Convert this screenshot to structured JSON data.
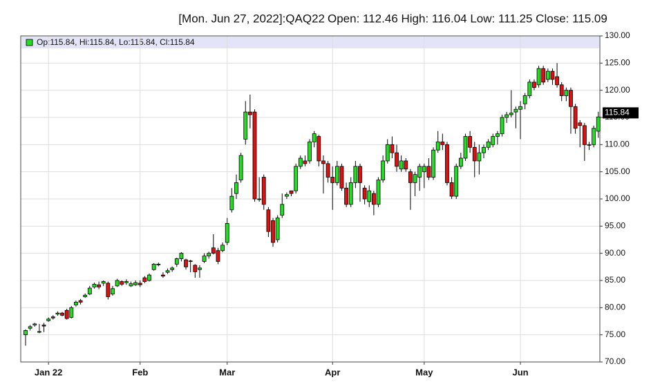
{
  "chart_data": {
    "type": "candlestick",
    "title": "[Mon. Jun 27, 2022]:QAQ22",
    "subtitle": "Open: 112.46 High: 116.04 Low: 111.25 Close: 115.09",
    "legend_text": "Op:115.84, Hi:115.84, Lo:115.84, Cl:115.84",
    "last_price": {
      "value": 115.84,
      "label": "115.84"
    },
    "up_color": "#22dd22",
    "down_color": "#dd1111",
    "grid": true,
    "ylim": [
      70,
      130
    ],
    "yticks": [
      {
        "value": 70,
        "label": "70.00"
      },
      {
        "value": 75,
        "label": "75.00"
      },
      {
        "value": 80,
        "label": "80.00"
      },
      {
        "value": 85,
        "label": "85.00"
      },
      {
        "value": 90,
        "label": "90.00"
      },
      {
        "value": 95,
        "label": "95.00"
      },
      {
        "value": 100,
        "label": "100.00"
      },
      {
        "value": 105,
        "label": "105.00"
      },
      {
        "value": 110,
        "label": "110.00"
      },
      {
        "value": 115,
        "label": "115.00"
      },
      {
        "value": 120,
        "label": "120.00"
      },
      {
        "value": 125,
        "label": "125.00"
      },
      {
        "value": 130,
        "label": "130.00"
      }
    ],
    "categories": [
      null,
      null,
      null,
      null,
      null,
      "Jan 22",
      null,
      null,
      null,
      null,
      null,
      null,
      null,
      null,
      null,
      null,
      null,
      null,
      null,
      null,
      null,
      null,
      null,
      null,
      null,
      "Feb",
      null,
      null,
      null,
      null,
      null,
      null,
      null,
      null,
      null,
      null,
      null,
      null,
      null,
      null,
      null,
      null,
      null,
      null,
      "Mar",
      null,
      null,
      null,
      null,
      null,
      null,
      null,
      null,
      null,
      null,
      null,
      null,
      null,
      null,
      null,
      null,
      null,
      null,
      null,
      null,
      null,
      null,
      "Apr",
      null,
      null,
      null,
      null,
      null,
      null,
      null,
      null,
      null,
      null,
      null,
      null,
      null,
      null,
      null,
      null,
      null,
      null,
      null,
      "May",
      null,
      null,
      null,
      null,
      null,
      null,
      null,
      null,
      null,
      null,
      null,
      null,
      null,
      null,
      null,
      null,
      null,
      null,
      null,
      null,
      "Jun",
      null,
      null,
      null,
      null,
      null,
      null,
      null,
      null,
      null,
      null,
      null,
      null,
      null,
      null,
      null,
      null,
      null
    ],
    "open": [
      75.0,
      76.2,
      76.8,
      75.5,
      76.8,
      77.6,
      78.3,
      78.8,
      79.0,
      79.5,
      78.2,
      80.5,
      81.3,
      82.0,
      82.5,
      83.8,
      84.2,
      84.5,
      84.5,
      82.5,
      84.0,
      84.8,
      84.6,
      84.0,
      84.2,
      84.5,
      85.5,
      85.0,
      87.0,
      88.0,
      86.0,
      86.5,
      87.0,
      88.0,
      89.0,
      88.8,
      88.5,
      87.8,
      87.0,
      88.5,
      89.5,
      91.0,
      90.5,
      90.5,
      92.0,
      98.0,
      101.0,
      103.5,
      111.0,
      116.0,
      116.0,
      100.0,
      104.0,
      98.0,
      96.0,
      92.5,
      97.0,
      100.5,
      101.5,
      101.5,
      106.0,
      107.0,
      107.0,
      110.5,
      111.5,
      107.0,
      106.5,
      104.0,
      103.0,
      106.0,
      102.0,
      99.0,
      103.0,
      106.0,
      102.0,
      99.5,
      101.0,
      99.0,
      103.5,
      107.0,
      110.0,
      108.5,
      105.5,
      107.0,
      105.0,
      103.0,
      104.0,
      105.0,
      106.0,
      104.0,
      109.0,
      110.5,
      110.0,
      103.0,
      100.5,
      106.0,
      107.5,
      111.5,
      109.5,
      107.0,
      108.5,
      109.5,
      110.0,
      111.5,
      112.0,
      115.0,
      115.5,
      116.0,
      116.5,
      117.5,
      119.0,
      121.5,
      121.0,
      124.0,
      122.0,
      123.5,
      122.5,
      121.0,
      119.0,
      120.0,
      117.0,
      114.0,
      113.5,
      110.0,
      110.0,
      112.46
    ],
    "high": [
      76.0,
      76.8,
      77.2,
      77.0,
      77.2,
      78.2,
      78.6,
      79.3,
      79.2,
      79.8,
      80.3,
      81.3,
      81.6,
      82.6,
      84.0,
      84.6,
      84.8,
      85.0,
      84.8,
      84.0,
      85.3,
      85.0,
      85.2,
      84.8,
      85.0,
      85.0,
      85.8,
      86.3,
      88.2,
      88.3,
      86.5,
      87.2,
      87.6,
      89.2,
      90.2,
      89.0,
      88.8,
      88.0,
      87.8,
      90.0,
      90.3,
      93.5,
      91.0,
      92.0,
      96.5,
      102.0,
      104.5,
      108.5,
      118.0,
      119.2,
      116.5,
      104.0,
      104.5,
      98.5,
      96.5,
      97.0,
      101.0,
      101.2,
      101.5,
      106.5,
      108.0,
      108.0,
      111.0,
      112.5,
      111.8,
      108.0,
      107.0,
      106.0,
      107.0,
      106.5,
      103.0,
      104.0,
      107.0,
      106.5,
      102.5,
      102.5,
      101.5,
      104.0,
      108.0,
      111.0,
      111.5,
      110.0,
      108.0,
      107.5,
      105.5,
      105.0,
      106.5,
      106.5,
      107.5,
      109.5,
      112.5,
      112.0,
      110.5,
      104.0,
      106.5,
      108.5,
      112.0,
      112.5,
      110.5,
      110.0,
      110.0,
      111.0,
      112.0,
      112.5,
      115.5,
      116.0,
      120.0,
      117.0,
      118.0,
      119.5,
      122.0,
      122.0,
      124.5,
      124.5,
      124.0,
      124.0,
      125.0,
      121.5,
      120.5,
      120.5,
      117.5,
      114.5,
      114.0,
      110.5,
      113.5,
      116.04
    ],
    "low": [
      73.0,
      75.8,
      76.5,
      75.3,
      75.5,
      77.4,
      77.8,
      78.5,
      78.4,
      77.8,
      78.0,
      80.2,
      80.6,
      81.8,
      82.3,
      83.5,
      83.4,
      84.0,
      81.5,
      82.2,
      83.8,
      84.0,
      84.2,
      83.8,
      84.0,
      83.8,
      84.5,
      84.8,
      86.8,
      87.6,
      85.5,
      86.2,
      86.6,
      87.5,
      88.5,
      87.0,
      86.5,
      85.5,
      85.5,
      88.2,
      89.0,
      89.8,
      88.0,
      90.2,
      91.5,
      97.5,
      100.0,
      103.0,
      110.0,
      113.0,
      99.5,
      99.5,
      98.0,
      93.0,
      91.2,
      92.0,
      96.5,
      100.0,
      100.5,
      101.0,
      105.5,
      106.0,
      106.5,
      109.5,
      106.0,
      101.0,
      103.0,
      98.0,
      102.5,
      101.5,
      98.5,
      98.5,
      102.0,
      99.5,
      99.0,
      98.5,
      97.0,
      98.5,
      103.0,
      106.5,
      107.5,
      105.0,
      105.0,
      105.0,
      98.0,
      100.5,
      101.5,
      102.0,
      103.5,
      103.5,
      108.5,
      109.0,
      102.5,
      100.0,
      100.0,
      105.5,
      107.0,
      108.5,
      104.0,
      104.5,
      107.5,
      109.0,
      109.5,
      110.0,
      111.5,
      114.0,
      115.0,
      113.0,
      111.0,
      116.5,
      118.5,
      120.0,
      120.5,
      121.0,
      121.5,
      121.0,
      120.5,
      118.0,
      118.0,
      112.0,
      112.0,
      109.5,
      107.0,
      109.0,
      109.5,
      111.25
    ],
    "close": [
      75.8,
      76.5,
      77.0,
      75.6,
      76.6,
      77.9,
      78.1,
      79.0,
      78.6,
      78.0,
      80.0,
      81.0,
      81.0,
      82.3,
      83.6,
      84.3,
      83.8,
      84.8,
      82.0,
      83.5,
      85.0,
      84.3,
      84.8,
      84.4,
      84.6,
      84.2,
      84.8,
      86.0,
      88.0,
      88.0,
      85.8,
      86.8,
      87.3,
      89.0,
      90.0,
      87.5,
      88.6,
      86.6,
      87.3,
      89.5,
      90.0,
      90.0,
      88.5,
      91.5,
      95.5,
      100.5,
      103.0,
      108.0,
      116.0,
      115.5,
      100.0,
      100.0,
      99.0,
      94.0,
      92.0,
      96.5,
      99.0,
      100.8,
      101.0,
      106.0,
      107.5,
      106.5,
      110.5,
      112.0,
      107.0,
      106.5,
      104.0,
      103.0,
      106.0,
      102.0,
      99.0,
      103.0,
      106.0,
      103.0,
      100.0,
      101.5,
      99.0,
      103.5,
      107.0,
      110.0,
      108.5,
      106.0,
      107.0,
      105.5,
      103.0,
      104.5,
      106.0,
      106.0,
      104.0,
      109.0,
      110.5,
      110.0,
      103.0,
      100.5,
      106.0,
      107.5,
      111.5,
      109.5,
      107.0,
      108.5,
      109.5,
      110.5,
      111.5,
      112.0,
      115.0,
      115.5,
      115.8,
      116.5,
      117.0,
      119.0,
      121.5,
      120.5,
      124.0,
      121.5,
      123.5,
      122.0,
      121.0,
      119.0,
      120.0,
      117.0,
      113.0,
      113.5,
      110.0,
      110.0,
      113.0,
      115.09
    ]
  }
}
